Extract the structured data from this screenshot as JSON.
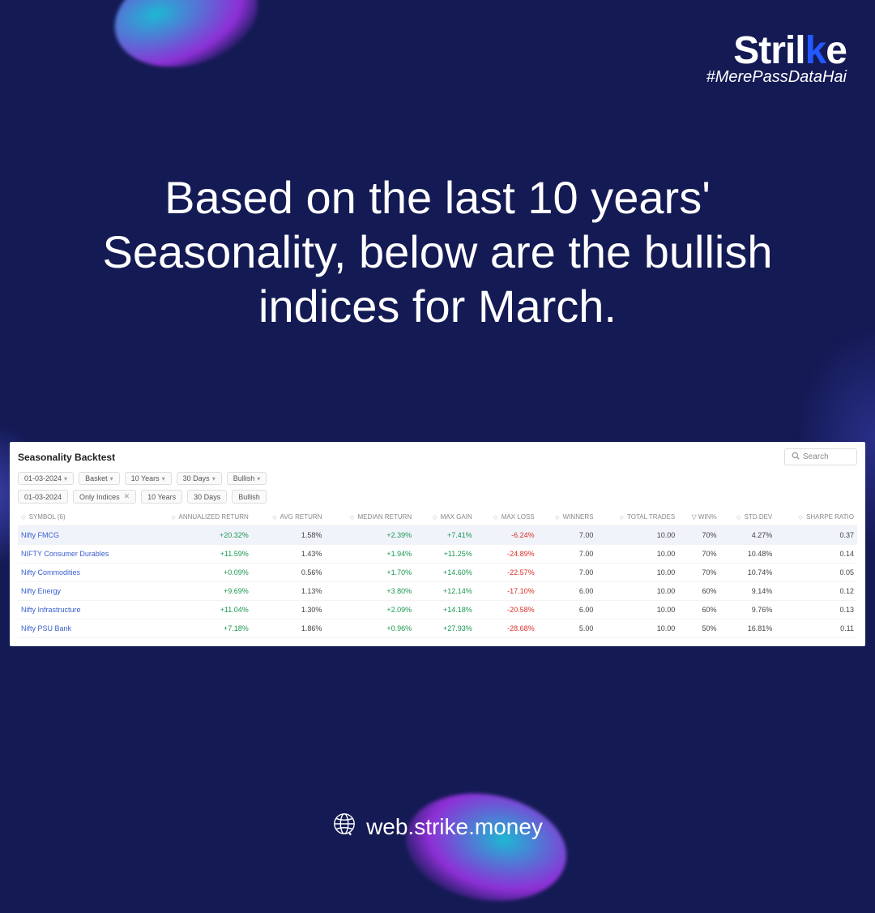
{
  "brand": {
    "name_part1": "Stril",
    "name_part2": "e",
    "hashtag": "#MerePassDataHai"
  },
  "headline": "Based on the last 10 years' Seasonality, below are the bullish indices for March.",
  "panel": {
    "title": "Seasonality Backtest",
    "search_placeholder": "Search",
    "filters_top": [
      {
        "label": "01-03-2024",
        "caret": true
      },
      {
        "label": "Basket",
        "caret": true
      },
      {
        "label": "10 Years",
        "caret": true
      },
      {
        "label": "30 Days",
        "caret": true
      },
      {
        "label": "Bullish",
        "caret": true
      }
    ],
    "filters_chips": [
      {
        "label": "01-03-2024"
      },
      {
        "label": "Only Indices",
        "close": true
      },
      {
        "label": "10 Years"
      },
      {
        "label": "30 Days"
      },
      {
        "label": "Bullish"
      }
    ],
    "columns": [
      {
        "label": "SYMBOL (6)",
        "align": "l"
      },
      {
        "label": "ANNUALIZED RETURN",
        "align": "r"
      },
      {
        "label": "AVG RETURN",
        "align": "r"
      },
      {
        "label": "MEDIAN RETURN",
        "align": "r"
      },
      {
        "label": "MAX GAIN",
        "align": "r"
      },
      {
        "label": "MAX LOSS",
        "align": "r"
      },
      {
        "label": "WINNERS",
        "align": "r"
      },
      {
        "label": "TOTAL TRADES",
        "align": "r"
      },
      {
        "label": "WIN%",
        "align": "r",
        "filter": true
      },
      {
        "label": "STD.DEV",
        "align": "r"
      },
      {
        "label": "SHARPE RATIO",
        "align": "r"
      }
    ],
    "rows": [
      {
        "hl": true,
        "symbol": "Nifty FMCG",
        "ann": "+20.32%",
        "avg": "1.58%",
        "med": "+2.39%",
        "gain": "+7.41%",
        "loss": "-6.24%",
        "win": "7.00",
        "tot": "10.00",
        "pct": "70%",
        "std": "4.27%",
        "sharpe": "0.37"
      },
      {
        "symbol": "NIFTY Consumer Durables",
        "ann": "+11.59%",
        "avg": "1.43%",
        "med": "+1.94%",
        "gain": "+11.25%",
        "loss": "-24.89%",
        "win": "7.00",
        "tot": "10.00",
        "pct": "70%",
        "std": "10.48%",
        "sharpe": "0.14"
      },
      {
        "symbol": "Nifty Commodities",
        "ann": "+0.09%",
        "avg": "0.56%",
        "med": "+1.70%",
        "gain": "+14.60%",
        "loss": "-22.57%",
        "win": "7.00",
        "tot": "10.00",
        "pct": "70%",
        "std": "10.74%",
        "sharpe": "0.05"
      },
      {
        "symbol": "Nifty Energy",
        "ann": "+9.69%",
        "avg": "1.13%",
        "med": "+3.80%",
        "gain": "+12.14%",
        "loss": "-17.10%",
        "win": "6.00",
        "tot": "10.00",
        "pct": "60%",
        "std": "9.14%",
        "sharpe": "0.12"
      },
      {
        "symbol": "Nifty Infrastructure",
        "ann": "+11.04%",
        "avg": "1.30%",
        "med": "+2.09%",
        "gain": "+14.18%",
        "loss": "-20.58%",
        "win": "6.00",
        "tot": "10.00",
        "pct": "60%",
        "std": "9.76%",
        "sharpe": "0.13"
      },
      {
        "symbol": "Nifty PSU Bank",
        "ann": "+7.18%",
        "avg": "1.86%",
        "med": "+0.96%",
        "gain": "+27.93%",
        "loss": "-28.68%",
        "win": "5.00",
        "tot": "10.00",
        "pct": "50%",
        "std": "16.81%",
        "sharpe": "0.11"
      }
    ]
  },
  "footer": {
    "url": "web.strike.money"
  },
  "colors": {
    "bg": "#141a54",
    "pos": "#1a9850",
    "neg": "#d73027",
    "link": "#3a5fcc",
    "accent": "#2458ff"
  }
}
